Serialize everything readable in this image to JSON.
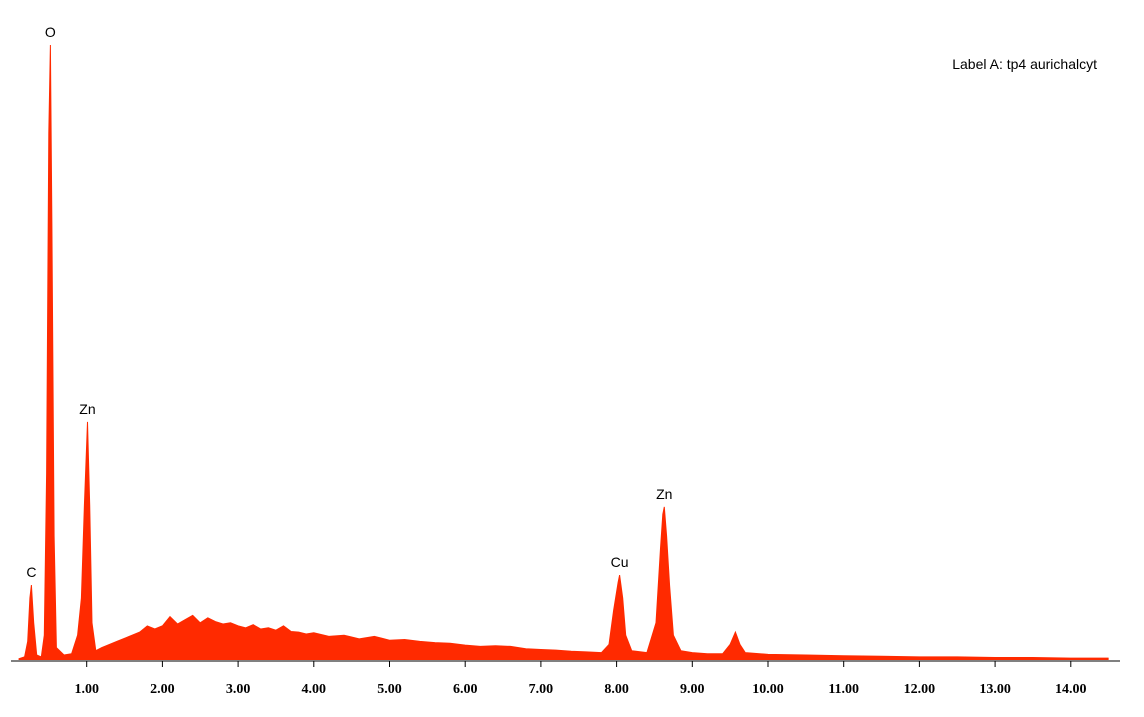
{
  "chart_data": {
    "type": "area",
    "title": "Label A: tp4 aurichalcyt",
    "color": "#ff2a00",
    "x": [
      0.1,
      0.18,
      0.22,
      0.25,
      0.27,
      0.3,
      0.34,
      0.4,
      0.44,
      0.47,
      0.5,
      0.52,
      0.54,
      0.57,
      0.6,
      0.7,
      0.8,
      0.88,
      0.93,
      0.97,
      1.01,
      1.04,
      1.07,
      1.12,
      1.2,
      1.3,
      1.4,
      1.5,
      1.6,
      1.7,
      1.8,
      1.9,
      2.0,
      2.1,
      2.2,
      2.3,
      2.4,
      2.5,
      2.6,
      2.7,
      2.8,
      2.9,
      3.0,
      3.1,
      3.2,
      3.3,
      3.4,
      3.5,
      3.6,
      3.7,
      3.8,
      3.9,
      4.0,
      4.2,
      4.4,
      4.6,
      4.8,
      5.0,
      5.2,
      5.4,
      5.6,
      5.8,
      6.0,
      6.2,
      6.4,
      6.6,
      6.8,
      7.0,
      7.2,
      7.4,
      7.6,
      7.8,
      7.9,
      7.96,
      8.02,
      8.04,
      8.08,
      8.12,
      8.2,
      8.4,
      8.52,
      8.58,
      8.61,
      8.63,
      8.66,
      8.7,
      8.75,
      8.85,
      9.0,
      9.2,
      9.4,
      9.5,
      9.57,
      9.63,
      9.7,
      10.0,
      10.5,
      11.0,
      11.5,
      12.0,
      12.5,
      13.0,
      13.5,
      14.0,
      14.5
    ],
    "values": [
      2,
      5,
      30,
      100,
      121,
      60,
      8,
      5,
      40,
      300,
      850,
      992,
      700,
      200,
      20,
      8,
      10,
      40,
      100,
      250,
      384,
      250,
      60,
      15,
      20,
      25,
      30,
      35,
      40,
      45,
      55,
      50,
      55,
      70,
      58,
      65,
      72,
      60,
      68,
      62,
      58,
      60,
      55,
      52,
      57,
      50,
      52,
      48,
      55,
      46,
      45,
      42,
      44,
      38,
      40,
      34,
      38,
      32,
      33,
      30,
      28,
      27,
      24,
      22,
      23,
      22,
      18,
      17,
      16,
      14,
      13,
      12,
      25,
      80,
      125,
      137,
      100,
      40,
      15,
      12,
      60,
      180,
      235,
      247,
      200,
      120,
      40,
      15,
      12,
      10,
      10,
      25,
      45,
      25,
      12,
      9,
      8,
      7,
      6,
      5,
      5,
      4,
      4,
      3,
      3
    ],
    "annotations": [
      {
        "text": "C",
        "x": 0.27
      },
      {
        "text": "O",
        "x": 0.52
      },
      {
        "text": "Zn",
        "x": 1.01
      },
      {
        "text": "Cu",
        "x": 8.04
      },
      {
        "text": "Zn",
        "x": 8.63
      }
    ],
    "xlim": [
      0,
      14.65
    ],
    "ylim": [
      0,
      1000
    ],
    "xticks": [
      {
        "value": 1,
        "label": "1.00"
      },
      {
        "value": 2,
        "label": "2.00"
      },
      {
        "value": 3,
        "label": "3.00"
      },
      {
        "value": 4,
        "label": "4.00"
      },
      {
        "value": 5,
        "label": "5.00"
      },
      {
        "value": 6,
        "label": "6.00"
      },
      {
        "value": 7,
        "label": "7.00"
      },
      {
        "value": 8,
        "label": "8.00"
      },
      {
        "value": 9,
        "label": "9.00"
      },
      {
        "value": 10,
        "label": "10.00"
      },
      {
        "value": 11,
        "label": "11.00"
      },
      {
        "value": 12,
        "label": "12.00"
      },
      {
        "value": 13,
        "label": "13.00"
      },
      {
        "value": 14,
        "label": "14.00"
      }
    ]
  }
}
